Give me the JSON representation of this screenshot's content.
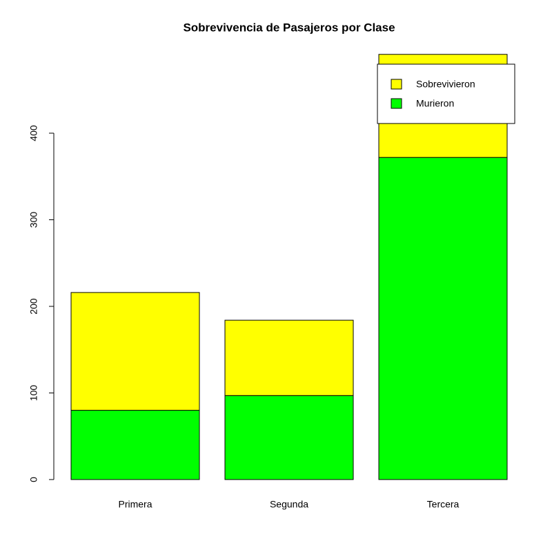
{
  "chart_data": {
    "type": "stacked_bar",
    "title": "Sobrevivencia de Pasajeros por Clase",
    "categories": [
      "Primera",
      "Segunda",
      "Tercera"
    ],
    "series": [
      {
        "name": "Sobrevivieron",
        "color": "#ffff00",
        "values": [
          136,
          87,
          119
        ]
      },
      {
        "name": "Murieron",
        "color": "#00ff00",
        "values": [
          80,
          97,
          372
        ]
      }
    ],
    "ylim": [
      0,
      500
    ],
    "yticks": [
      0,
      100,
      200,
      300,
      400
    ],
    "legend": "top-right"
  }
}
